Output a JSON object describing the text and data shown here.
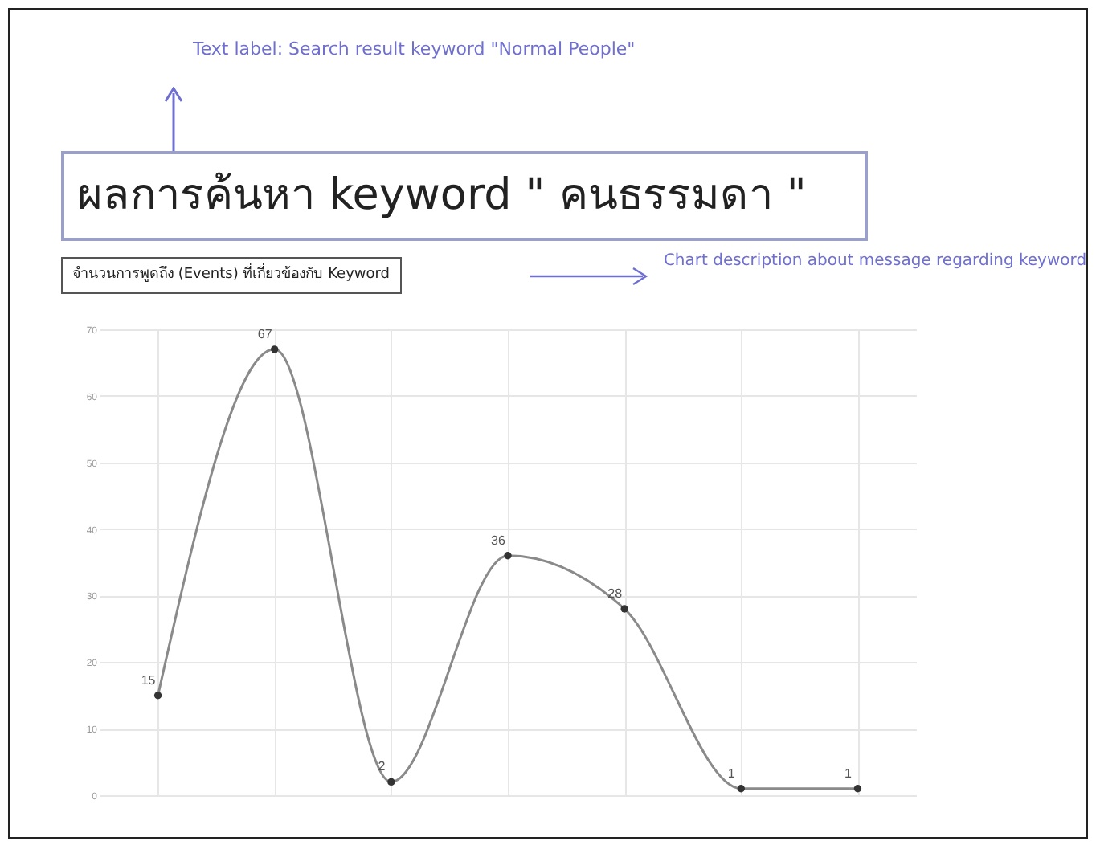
{
  "chart_data": {
    "type": "line",
    "title": "ผลการค้นหา keyword \" คนธรรมดา \"",
    "subtitle": "จำนวนการพูดถึง (Events) ที่เกี่ยวข้องกับ Keyword",
    "annotations": [
      "Text label: Search result keyword \"Normal People\"",
      "Chart description about message regarding keyword"
    ],
    "categories": [
      null,
      null,
      null,
      null,
      null,
      null,
      null
    ],
    "series": [
      {
        "color": "#8a8a8a",
        "values": [
          15,
          67,
          2,
          36,
          28,
          1,
          1
        ]
      }
    ],
    "ylim": [
      0,
      70
    ],
    "yticks": [
      0,
      10,
      20,
      30,
      40,
      50,
      60,
      70
    ],
    "grid": true,
    "marker": "circle",
    "data_labels": true
  }
}
